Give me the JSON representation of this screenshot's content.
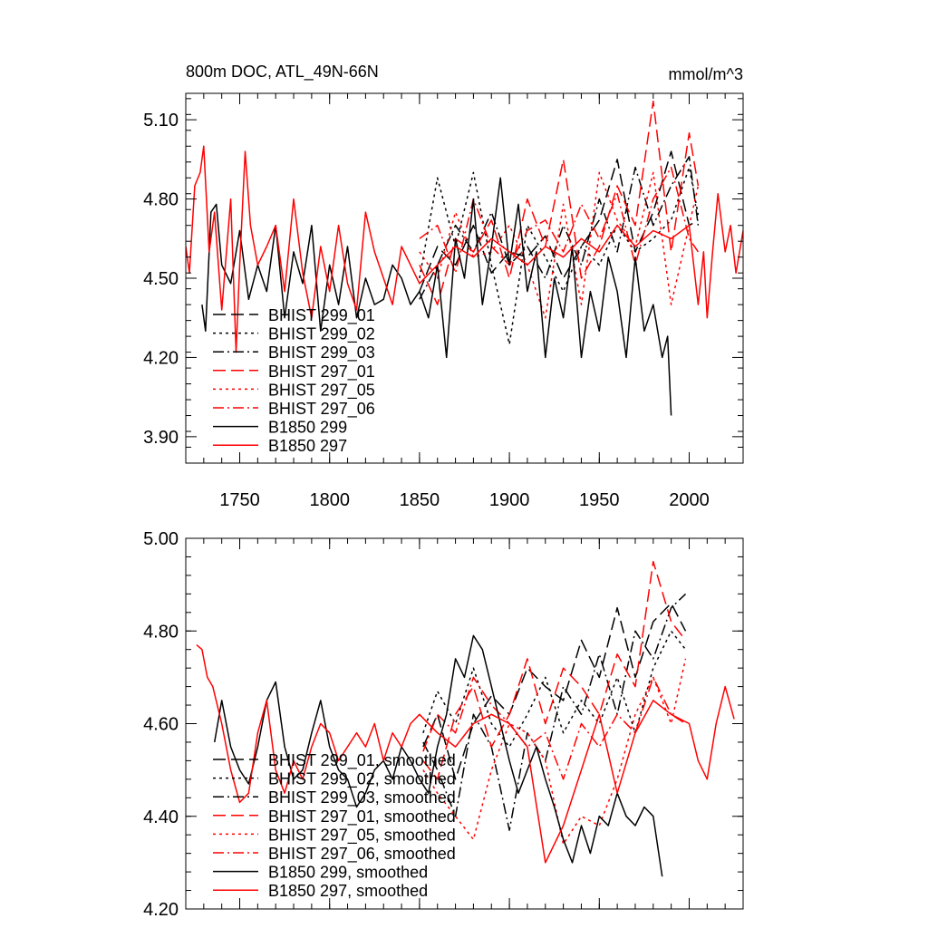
{
  "chart_data": [
    {
      "type": "line",
      "title": "800m DOC, ATL_49N-66N",
      "units": "mmol/m^3",
      "xlim": [
        1720,
        2030
      ],
      "ylim": [
        3.8,
        5.2
      ],
      "x_ticks": [
        "1750",
        "1800",
        "1850",
        "1900",
        "1950",
        "2000"
      ],
      "y_ticks": [
        "3.90",
        "4.20",
        "4.50",
        "4.80",
        "5.10"
      ],
      "legend_position": "bottom-left",
      "series": [
        {
          "name": "BHIST 299_01",
          "color": "#000000",
          "dash": "long-dash",
          "x": [
            1850,
            1860,
            1870,
            1880,
            1890,
            1900,
            1910,
            1920,
            1930,
            1940,
            1950,
            1960,
            1970,
            1980,
            1990,
            2000,
            2005
          ],
          "y": [
            4.45,
            4.62,
            4.55,
            4.7,
            4.52,
            4.6,
            4.58,
            4.66,
            4.5,
            4.62,
            4.72,
            4.95,
            4.6,
            4.75,
            4.98,
            4.7,
            4.72
          ]
        },
        {
          "name": "BHIST 299_02",
          "color": "#000000",
          "dash": "dot",
          "x": [
            1850,
            1860,
            1870,
            1880,
            1890,
            1900,
            1910,
            1920,
            1930,
            1940,
            1950,
            1960,
            1970,
            1980,
            1990,
            2000,
            2005
          ],
          "y": [
            4.5,
            4.88,
            4.62,
            4.9,
            4.55,
            4.25,
            4.7,
            4.58,
            4.45,
            4.62,
            4.55,
            4.7,
            4.6,
            4.65,
            4.72,
            4.92,
            4.74
          ]
        },
        {
          "name": "BHIST 299_03",
          "color": "#000000",
          "dash": "dash-dot",
          "x": [
            1850,
            1860,
            1870,
            1880,
            1890,
            1900,
            1910,
            1920,
            1930,
            1940,
            1950,
            1960,
            1970,
            1980,
            1990,
            2000,
            2005
          ],
          "y": [
            4.42,
            4.55,
            4.7,
            4.6,
            4.75,
            4.55,
            4.62,
            4.5,
            4.7,
            4.55,
            4.8,
            4.6,
            4.92,
            4.7,
            4.85,
            4.96,
            4.7
          ]
        },
        {
          "name": "BHIST 297_01",
          "color": "#ff0000",
          "dash": "long-dash",
          "x": [
            1850,
            1860,
            1870,
            1880,
            1890,
            1900,
            1910,
            1920,
            1930,
            1940,
            1950,
            1960,
            1970,
            1980,
            1990,
            2000,
            2005
          ],
          "y": [
            4.55,
            4.4,
            4.65,
            4.6,
            4.72,
            4.5,
            4.8,
            4.62,
            4.95,
            4.5,
            4.62,
            4.85,
            4.7,
            5.17,
            4.6,
            5.05,
            4.85
          ]
        },
        {
          "name": "BHIST 297_05",
          "color": "#ff0000",
          "dash": "dot",
          "x": [
            1850,
            1860,
            1870,
            1880,
            1890,
            1900,
            1910,
            1920,
            1930,
            1940,
            1950,
            1960,
            1970,
            1980,
            1990,
            2000,
            2005
          ],
          "y": [
            4.6,
            4.5,
            4.75,
            4.58,
            4.6,
            4.7,
            4.55,
            4.35,
            4.78,
            4.4,
            4.9,
            4.72,
            4.62,
            4.9,
            4.4,
            4.7,
            4.85
          ]
        },
        {
          "name": "BHIST 297_06",
          "color": "#ff0000",
          "dash": "dash-dot",
          "x": [
            1850,
            1860,
            1870,
            1880,
            1890,
            1900,
            1910,
            1920,
            1930,
            1940,
            1950,
            1960,
            1970,
            1980,
            1990,
            2000,
            2005
          ],
          "y": [
            4.65,
            4.7,
            4.52,
            4.8,
            4.62,
            4.55,
            4.68,
            4.72,
            4.6,
            4.78,
            4.65,
            4.82,
            4.55,
            4.8,
            4.92,
            4.65,
            4.6
          ]
        },
        {
          "name": "B1850 299",
          "color": "#000000",
          "dash": "solid",
          "x": [
            1729,
            1731,
            1734,
            1737,
            1740,
            1745,
            1750,
            1755,
            1760,
            1765,
            1770,
            1775,
            1780,
            1785,
            1790,
            1795,
            1800,
            1805,
            1810,
            1815,
            1820,
            1825,
            1830,
            1835,
            1840,
            1845,
            1850,
            1855,
            1860,
            1865,
            1870,
            1875,
            1880,
            1885,
            1890,
            1895,
            1900,
            1905,
            1910,
            1915,
            1920,
            1925,
            1930,
            1935,
            1940,
            1945,
            1950,
            1955,
            1960,
            1965,
            1970,
            1975,
            1980,
            1985,
            1988,
            1990
          ],
          "y": [
            4.4,
            4.3,
            4.75,
            4.78,
            4.55,
            4.48,
            4.68,
            4.42,
            4.55,
            4.45,
            4.7,
            4.35,
            4.6,
            4.48,
            4.7,
            4.3,
            4.55,
            4.4,
            4.62,
            4.35,
            4.5,
            4.4,
            4.42,
            4.55,
            4.5,
            4.4,
            4.45,
            4.35,
            4.55,
            4.2,
            4.65,
            4.5,
            4.8,
            4.4,
            4.62,
            4.88,
            4.55,
            4.78,
            4.45,
            4.6,
            4.2,
            4.5,
            4.35,
            4.62,
            4.2,
            4.45,
            4.3,
            4.58,
            4.45,
            4.2,
            4.58,
            4.3,
            4.4,
            4.2,
            4.28,
            3.98
          ]
        },
        {
          "name": "B1850 297",
          "color": "#ff0000",
          "dash": "solid",
          "x": [
            1720,
            1722,
            1725,
            1728,
            1730,
            1733,
            1736,
            1740,
            1745,
            1748,
            1750,
            1753,
            1756,
            1760,
            1765,
            1770,
            1775,
            1780,
            1785,
            1790,
            1795,
            1800,
            1805,
            1810,
            1815,
            1820,
            1825,
            1830,
            1835,
            1840,
            1845,
            1850,
            1860,
            1870,
            1880,
            1890,
            1900,
            1910,
            1920,
            1930,
            1940,
            1950,
            1960,
            1970,
            1980,
            1990,
            2000,
            2005,
            2008,
            2010,
            2013,
            2016,
            2020,
            2023,
            2026,
            2030
          ],
          "y": [
            4.62,
            4.52,
            4.85,
            4.9,
            5.0,
            4.6,
            4.75,
            4.38,
            4.8,
            4.22,
            4.55,
            4.98,
            4.7,
            4.55,
            4.62,
            4.7,
            4.45,
            4.8,
            4.52,
            4.35,
            4.62,
            4.45,
            4.7,
            4.48,
            4.38,
            4.75,
            4.6,
            4.5,
            4.4,
            4.62,
            4.55,
            4.48,
            4.55,
            4.62,
            4.58,
            4.65,
            4.6,
            4.55,
            4.62,
            4.58,
            4.65,
            4.6,
            4.7,
            4.62,
            4.68,
            4.65,
            4.7,
            4.4,
            4.6,
            4.35,
            4.6,
            4.82,
            4.6,
            4.7,
            4.52,
            4.68
          ]
        }
      ]
    },
    {
      "type": "line",
      "xlim": [
        1720,
        2030
      ],
      "ylim": [
        4.2,
        5.0
      ],
      "y_ticks": [
        "4.20",
        "4.40",
        "4.60",
        "4.80",
        "5.00"
      ],
      "legend_position": "bottom-left",
      "series": [
        {
          "name": "BHIST 299_01, smoothed",
          "color": "#000000",
          "dash": "long-dash",
          "x": [
            1852,
            1860,
            1870,
            1880,
            1890,
            1900,
            1910,
            1920,
            1930,
            1940,
            1950,
            1960,
            1970,
            1980,
            1990,
            1998
          ],
          "y": [
            4.55,
            4.62,
            4.48,
            4.6,
            4.66,
            4.62,
            4.72,
            4.68,
            4.65,
            4.78,
            4.7,
            4.85,
            4.7,
            4.82,
            4.86,
            4.8
          ]
        },
        {
          "name": "BHIST 299_02, smoothed",
          "color": "#000000",
          "dash": "dot",
          "x": [
            1852,
            1860,
            1870,
            1880,
            1890,
            1900,
            1910,
            1920,
            1930,
            1940,
            1950,
            1960,
            1970,
            1980,
            1990,
            1998
          ],
          "y": [
            4.58,
            4.67,
            4.6,
            4.72,
            4.6,
            4.55,
            4.62,
            4.7,
            4.58,
            4.65,
            4.6,
            4.7,
            4.58,
            4.72,
            4.8,
            4.76
          ]
        },
        {
          "name": "BHIST 299_03, smoothed",
          "color": "#000000",
          "dash": "dash-dot",
          "x": [
            1852,
            1860,
            1870,
            1880,
            1890,
            1900,
            1910,
            1920,
            1930,
            1940,
            1950,
            1960,
            1970,
            1980,
            1990,
            1998
          ],
          "y": [
            4.56,
            4.5,
            4.4,
            4.62,
            4.55,
            4.37,
            4.58,
            4.52,
            4.68,
            4.62,
            4.75,
            4.62,
            4.8,
            4.74,
            4.85,
            4.88
          ]
        },
        {
          "name": "BHIST 297_01, smoothed",
          "color": "#ff0000",
          "dash": "long-dash",
          "x": [
            1852,
            1860,
            1870,
            1880,
            1890,
            1900,
            1910,
            1920,
            1930,
            1940,
            1950,
            1960,
            1970,
            1980,
            1990,
            1998
          ],
          "y": [
            4.52,
            4.48,
            4.62,
            4.68,
            4.55,
            4.62,
            4.74,
            4.6,
            4.72,
            4.68,
            4.62,
            4.75,
            4.68,
            4.95,
            4.82,
            4.78
          ]
        },
        {
          "name": "BHIST 297_05, smoothed",
          "color": "#ff0000",
          "dash": "dot",
          "x": [
            1852,
            1860,
            1870,
            1880,
            1890,
            1900,
            1910,
            1920,
            1930,
            1940,
            1950,
            1960,
            1970,
            1980,
            1990,
            1998
          ],
          "y": [
            4.5,
            4.45,
            4.4,
            4.35,
            4.5,
            4.6,
            4.58,
            4.52,
            4.34,
            4.4,
            4.38,
            4.48,
            4.62,
            4.7,
            4.6,
            4.74
          ]
        },
        {
          "name": "BHIST 297_06, smoothed",
          "color": "#ff0000",
          "dash": "dash-dot",
          "x": [
            1852,
            1860,
            1870,
            1880,
            1890,
            1900,
            1910,
            1920,
            1930,
            1940,
            1950,
            1960,
            1970,
            1980,
            1990,
            1998
          ],
          "y": [
            4.54,
            4.62,
            4.58,
            4.7,
            4.64,
            4.6,
            4.55,
            4.58,
            4.48,
            4.6,
            4.55,
            4.62,
            4.58,
            4.7,
            4.62,
            4.6
          ]
        },
        {
          "name": "B1850 299, smoothed",
          "color": "#000000",
          "dash": "solid",
          "x": [
            1736,
            1740,
            1745,
            1750,
            1755,
            1760,
            1765,
            1770,
            1775,
            1780,
            1785,
            1790,
            1795,
            1800,
            1805,
            1810,
            1815,
            1820,
            1825,
            1830,
            1835,
            1840,
            1845,
            1850,
            1855,
            1860,
            1865,
            1870,
            1875,
            1880,
            1885,
            1890,
            1895,
            1900,
            1905,
            1910,
            1915,
            1920,
            1925,
            1930,
            1935,
            1940,
            1945,
            1950,
            1955,
            1960,
            1965,
            1970,
            1975,
            1980,
            1985
          ],
          "y": [
            4.56,
            4.65,
            4.55,
            4.5,
            4.47,
            4.55,
            4.65,
            4.69,
            4.55,
            4.48,
            4.5,
            4.58,
            4.65,
            4.55,
            4.5,
            4.48,
            4.42,
            4.45,
            4.5,
            4.52,
            4.48,
            4.55,
            4.52,
            4.48,
            4.45,
            4.55,
            4.62,
            4.74,
            4.7,
            4.79,
            4.76,
            4.68,
            4.6,
            4.52,
            4.45,
            4.5,
            4.55,
            4.48,
            4.42,
            4.35,
            4.3,
            4.38,
            4.32,
            4.4,
            4.38,
            4.45,
            4.4,
            4.38,
            4.42,
            4.4,
            4.27
          ]
        },
        {
          "name": "B1850 297, smoothed",
          "color": "#ff0000",
          "dash": "solid",
          "x": [
            1726,
            1729,
            1732,
            1735,
            1740,
            1745,
            1750,
            1755,
            1760,
            1765,
            1770,
            1775,
            1780,
            1785,
            1790,
            1795,
            1800,
            1805,
            1810,
            1815,
            1820,
            1825,
            1830,
            1835,
            1840,
            1845,
            1850,
            1860,
            1870,
            1880,
            1890,
            1900,
            1910,
            1920,
            1930,
            1940,
            1950,
            1960,
            1970,
            1980,
            1990,
            2000,
            2005,
            2010,
            2015,
            2020,
            2025
          ],
          "y": [
            4.77,
            4.76,
            4.7,
            4.68,
            4.6,
            4.5,
            4.43,
            4.45,
            4.58,
            4.65,
            4.5,
            4.45,
            4.52,
            4.48,
            4.55,
            4.6,
            4.58,
            4.52,
            4.55,
            4.58,
            4.55,
            4.6,
            4.52,
            4.58,
            4.55,
            4.6,
            4.62,
            4.58,
            4.55,
            4.6,
            4.62,
            4.6,
            4.55,
            4.3,
            4.38,
            4.5,
            4.62,
            4.45,
            4.58,
            4.65,
            4.62,
            4.6,
            4.52,
            4.48,
            4.6,
            4.68,
            4.61
          ]
        }
      ]
    }
  ]
}
